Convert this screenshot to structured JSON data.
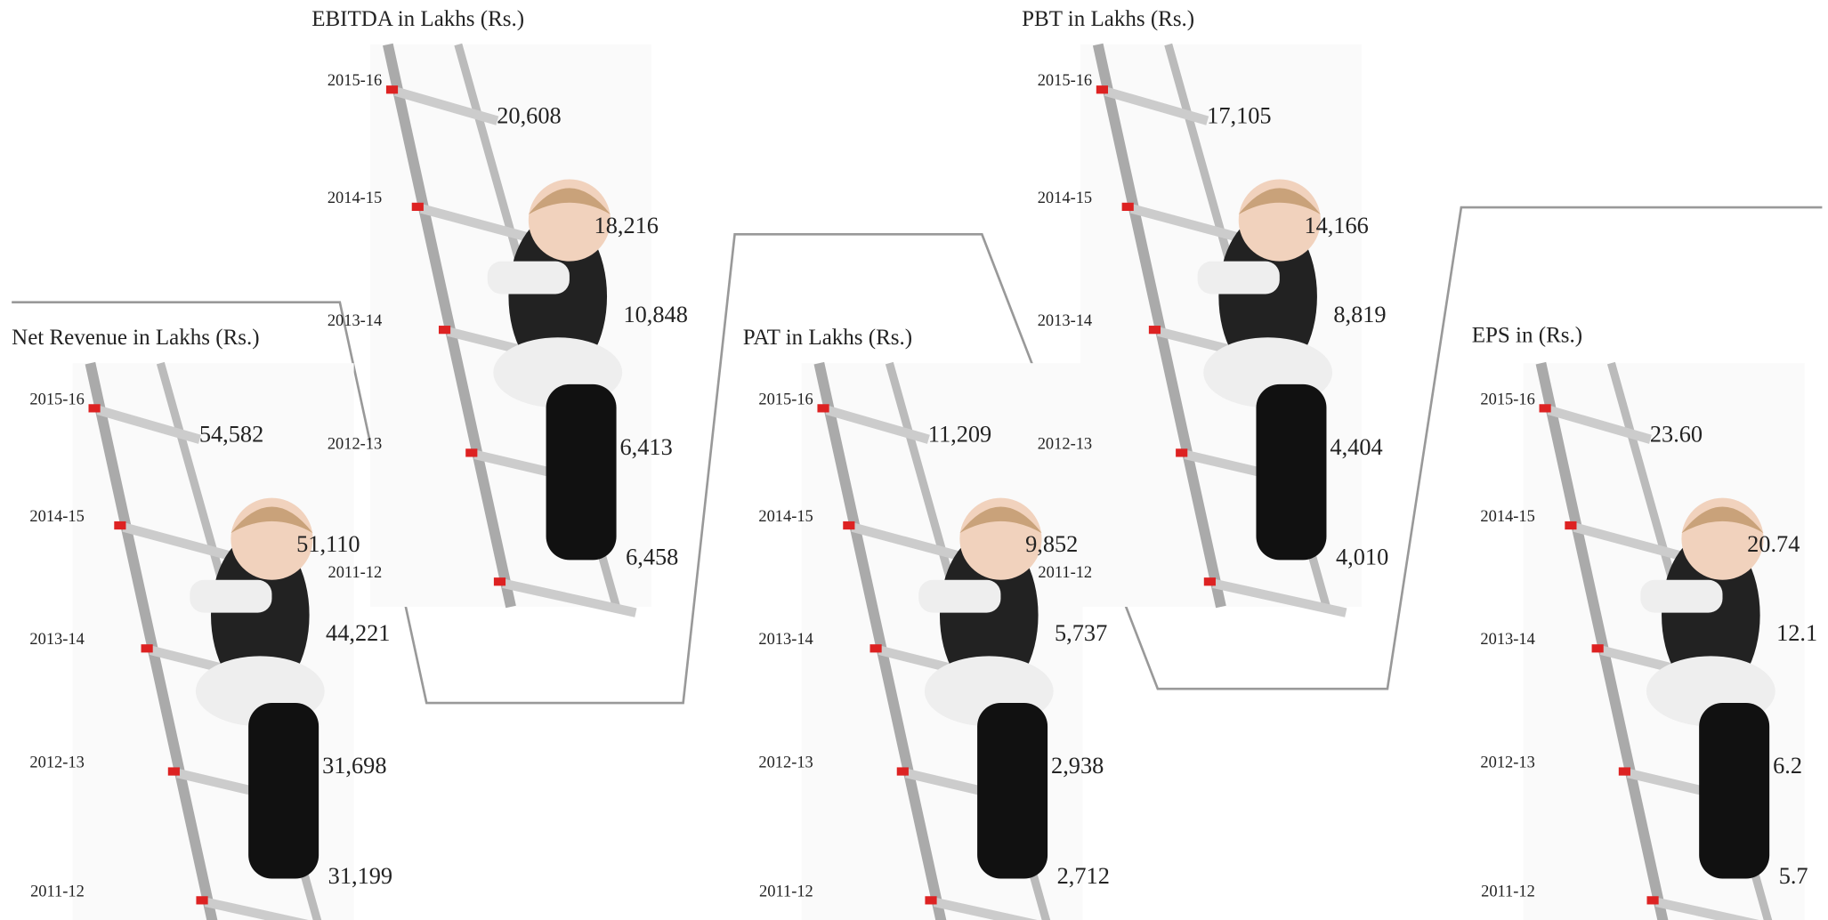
{
  "panels": [
    {
      "title": "Net Revenue in Lakhs (Rs.)",
      "rows": [
        {
          "year": "2015-16",
          "value": "54,582"
        },
        {
          "year": "2014-15",
          "value": "51,110"
        },
        {
          "year": "2013-14",
          "value": "44,221"
        },
        {
          "year": "2012-13",
          "value": "31,698"
        },
        {
          "year": "2011-12",
          "value": "31,199"
        }
      ]
    },
    {
      "title": "EBITDA in Lakhs (Rs.)",
      "rows": [
        {
          "year": "2015-16",
          "value": "20,608"
        },
        {
          "year": "2014-15",
          "value": "18,216"
        },
        {
          "year": "2013-14",
          "value": "10,848"
        },
        {
          "year": "2012-13",
          "value": "6,413"
        },
        {
          "year": "2011-12",
          "value": "6,458"
        }
      ]
    },
    {
      "title": "PAT in Lakhs (Rs.)",
      "rows": [
        {
          "year": "2015-16",
          "value": "11,209"
        },
        {
          "year": "2014-15",
          "value": "9,852"
        },
        {
          "year": "2013-14",
          "value": "5,737"
        },
        {
          "year": "2012-13",
          "value": "2,938"
        },
        {
          "year": "2011-12",
          "value": "2,712"
        }
      ]
    },
    {
      "title": "PBT in Lakhs (Rs.)",
      "rows": [
        {
          "year": "2015-16",
          "value": "17,105"
        },
        {
          "year": "2014-15",
          "value": "14,166"
        },
        {
          "year": "2013-14",
          "value": "8,819"
        },
        {
          "year": "2012-13",
          "value": "4,404"
        },
        {
          "year": "2011-12",
          "value": "4,010"
        }
      ]
    },
    {
      "title": "EPS in (Rs.)",
      "rows": [
        {
          "year": "2015-16",
          "value": "23.60"
        },
        {
          "year": "2014-15",
          "value": "20.74"
        },
        {
          "year": "2013-14",
          "value": "12.1"
        },
        {
          "year": "2012-13",
          "value": "6.2"
        },
        {
          "year": "2011-12",
          "value": "5.7"
        }
      ]
    }
  ]
}
